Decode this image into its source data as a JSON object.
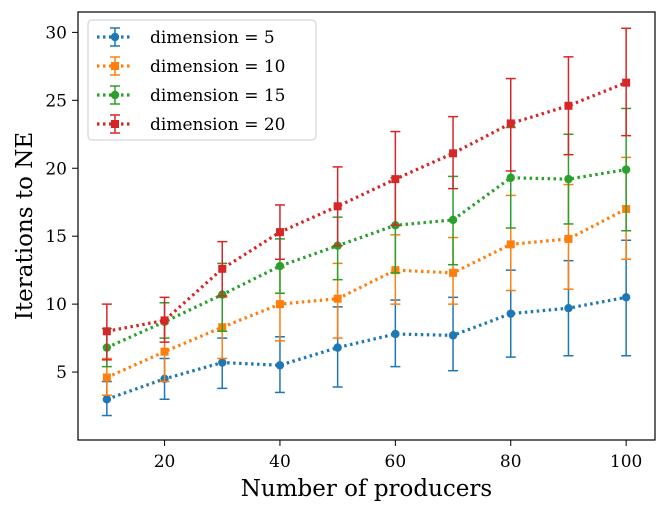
{
  "chart_data": {
    "type": "line",
    "title": "",
    "xlabel": "Number of producers",
    "ylabel": "Iterations to NE",
    "xlim": [
      5,
      105
    ],
    "ylim": [
      0,
      31.5
    ],
    "xticks": [
      20,
      40,
      60,
      80,
      100
    ],
    "yticks": [
      5,
      10,
      15,
      20,
      25,
      30
    ],
    "grid": false,
    "legend_position": "top-left",
    "x": [
      10,
      20,
      30,
      40,
      50,
      60,
      70,
      80,
      90,
      100
    ],
    "series": [
      {
        "name": "dimension = 5",
        "color": "#1f77b4",
        "marker": "circle",
        "values": [
          3.0,
          4.5,
          5.7,
          5.5,
          6.8,
          7.8,
          7.7,
          9.3,
          9.7,
          10.5
        ],
        "err_low": [
          1.8,
          3.0,
          3.8,
          3.5,
          3.9,
          5.4,
          5.1,
          6.1,
          6.2,
          6.2
        ],
        "err_high": [
          4.3,
          6.0,
          7.5,
          7.6,
          9.8,
          10.3,
          10.5,
          12.5,
          13.2,
          14.7
        ]
      },
      {
        "name": "dimension = 10",
        "color": "#ff7f0e",
        "marker": "square",
        "values": [
          4.6,
          6.5,
          8.3,
          10.0,
          10.4,
          12.5,
          12.3,
          14.4,
          14.8,
          17.0
        ],
        "err_low": [
          3.3,
          4.3,
          6.0,
          7.3,
          7.5,
          10.0,
          10.0,
          11.0,
          11.1,
          13.3
        ],
        "err_high": [
          6.0,
          8.8,
          10.5,
          12.7,
          13.0,
          15.1,
          14.9,
          18.0,
          18.8,
          20.8
        ]
      },
      {
        "name": "dimension = 15",
        "color": "#2ca02c",
        "marker": "circle",
        "values": [
          6.8,
          8.7,
          10.7,
          12.8,
          14.3,
          15.8,
          16.2,
          19.3,
          19.2,
          19.9
        ],
        "err_low": [
          5.4,
          7.5,
          8.0,
          10.8,
          11.8,
          12.3,
          12.9,
          15.6,
          15.9,
          15.4
        ],
        "err_high": [
          8.2,
          10.1,
          13.0,
          14.8,
          16.4,
          19.3,
          19.4,
          23.0,
          22.5,
          24.4
        ]
      },
      {
        "name": "dimension = 20",
        "color": "#d62728",
        "marker": "square",
        "values": [
          8.0,
          8.8,
          12.6,
          15.3,
          17.2,
          19.2,
          21.1,
          23.3,
          24.6,
          26.3
        ],
        "err_low": [
          5.9,
          7.2,
          10.6,
          13.3,
          14.3,
          15.8,
          18.5,
          19.8,
          21.0,
          22.4
        ],
        "err_high": [
          10.0,
          10.5,
          14.6,
          17.3,
          20.1,
          22.7,
          23.8,
          26.6,
          28.2,
          30.3
        ]
      }
    ]
  }
}
